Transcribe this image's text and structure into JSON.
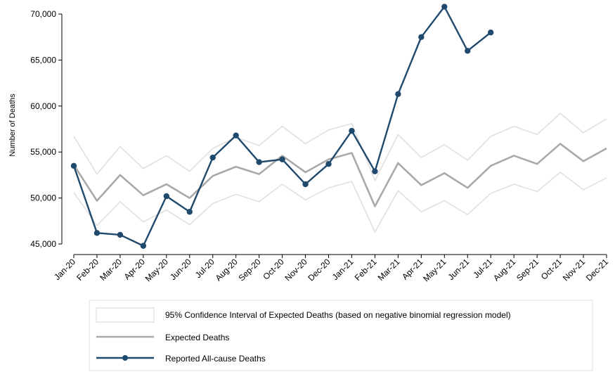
{
  "chart_data": {
    "type": "line",
    "title": "",
    "xlabel": "",
    "ylabel": "Number of Deaths",
    "ylim": [
      44000,
      71500
    ],
    "yticks": [
      45000,
      50000,
      55000,
      60000,
      65000,
      70000
    ],
    "ytick_labels": [
      "45,000",
      "50,000",
      "55,000",
      "60,000",
      "65,000",
      "70,000"
    ],
    "grid": false,
    "legend_position": "bottom",
    "categories": [
      "Jan-20",
      "Feb-20",
      "Mar-20",
      "Apr-20",
      "May-20",
      "Jun-20",
      "Jul-20",
      "Aug-20",
      "Sep-20",
      "Oct-20",
      "Nov-20",
      "Dec-20",
      "Jan-21",
      "Feb-21",
      "Mar-21",
      "Apr-21",
      "May-21",
      "Jun-21",
      "Jul-21",
      "Aug-21",
      "Sep-21",
      "Oct-21",
      "Nov-21",
      "Dec-21"
    ],
    "series": [
      {
        "name": "95% Confidence Interval of Expected Deaths (based on negative binomial regression model)",
        "kind": "band",
        "color": "#e0e0e0",
        "upper": [
          56700,
          52600,
          55600,
          53200,
          54600,
          52900,
          55400,
          56600,
          55700,
          57800,
          55900,
          57400,
          58100,
          51900,
          56900,
          54400,
          55800,
          54100,
          56700,
          57800,
          56900,
          59200,
          57100,
          58600
        ],
        "lower": [
          50600,
          47000,
          49600,
          47400,
          48700,
          47100,
          49400,
          50400,
          49600,
          51500,
          49800,
          51100,
          51800,
          46300,
          50800,
          48500,
          49700,
          48200,
          50500,
          51500,
          50700,
          52800,
          50900,
          52200
        ]
      },
      {
        "name": "Expected Deaths",
        "kind": "line",
        "color": "#a9a9a9",
        "values": [
          53600,
          49700,
          52500,
          50300,
          51500,
          50000,
          52400,
          53400,
          52600,
          54600,
          52800,
          54200,
          54900,
          49100,
          53800,
          51400,
          52700,
          51100,
          53500,
          54600,
          53700,
          55900,
          54000,
          55400
        ]
      },
      {
        "name": "Reported All-cause Deaths",
        "kind": "line-markers",
        "color": "#1f4a6e",
        "values": [
          53500,
          46200,
          46000,
          44800,
          50200,
          48500,
          54400,
          56800,
          53900,
          54200,
          51500,
          53700,
          57300,
          52900,
          61300,
          67500,
          70800,
          66000,
          68000,
          null,
          null,
          null,
          null,
          null
        ]
      }
    ]
  }
}
